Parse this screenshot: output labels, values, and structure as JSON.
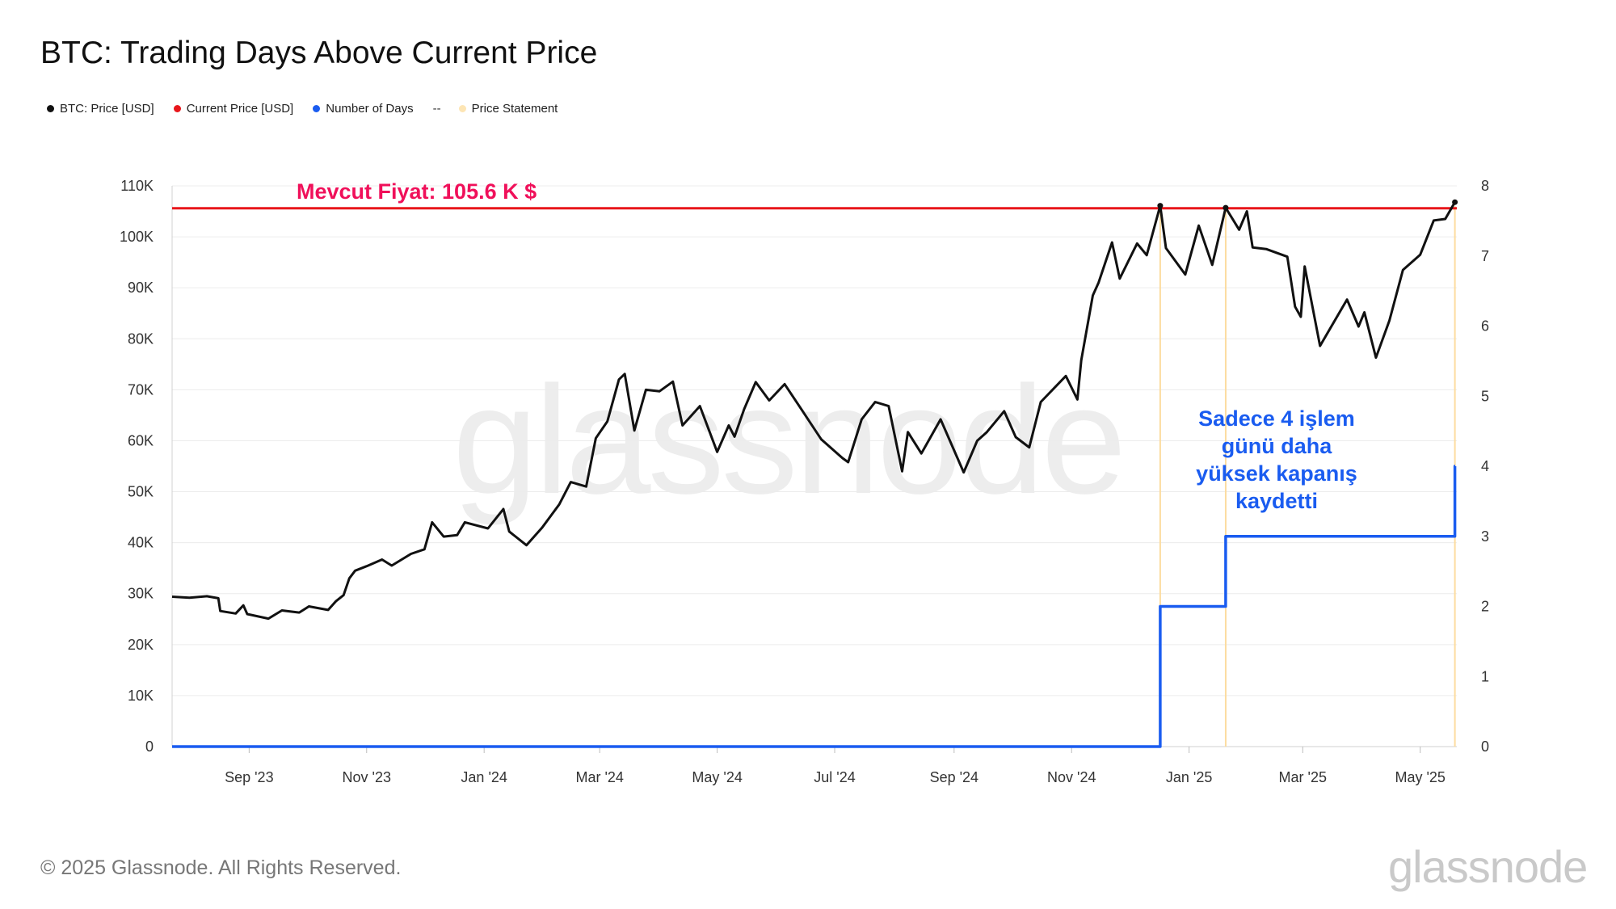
{
  "header": {
    "title": "BTC: Trading Days Above Current Price"
  },
  "legend": {
    "items": [
      {
        "label": "BTC: Price [USD]",
        "color": "#111111"
      },
      {
        "label": "Current Price [USD]",
        "color": "#e8161b"
      },
      {
        "label": "Number of Days",
        "color": "#1a5cf0"
      }
    ],
    "dash": "--",
    "statement": {
      "label": "Price Statement",
      "color": "#fde5b4"
    }
  },
  "footer": {
    "copyright": "© 2025 Glassnode. All Rights Reserved.",
    "brand": "glassnode"
  },
  "chart_data": {
    "type": "line",
    "watermark": "glassnode",
    "y_left": {
      "ticks": [
        "0",
        "10K",
        "20K",
        "30K",
        "40K",
        "50K",
        "60K",
        "70K",
        "80K",
        "90K",
        "100K",
        "110K"
      ],
      "ylim": [
        0,
        110000
      ]
    },
    "y_right": {
      "ticks": [
        "0",
        "1",
        "2",
        "3",
        "4",
        "5",
        "6",
        "7",
        "8"
      ],
      "ylim": [
        0,
        8
      ]
    },
    "x_ticks": [
      {
        "label": "Sep '23",
        "date": "2023-09-01"
      },
      {
        "label": "Nov '23",
        "date": "2023-11-01"
      },
      {
        "label": "Jan '24",
        "date": "2024-01-01"
      },
      {
        "label": "Mar '24",
        "date": "2024-03-01"
      },
      {
        "label": "May '24",
        "date": "2024-05-01"
      },
      {
        "label": "Jul '24",
        "date": "2024-07-01"
      },
      {
        "label": "Sep '24",
        "date": "2024-09-01"
      },
      {
        "label": "Nov '24",
        "date": "2024-11-01"
      },
      {
        "label": "Jan '25",
        "date": "2025-01-01"
      },
      {
        "label": "Mar '25",
        "date": "2025-03-01"
      },
      {
        "label": "May '25",
        "date": "2025-05-01"
      }
    ],
    "xlim": [
      "2023-07-23",
      "2025-05-20"
    ],
    "grid": true,
    "current_price": {
      "value": 105600,
      "label": "Mevcut Fiyat: 105.6 K $"
    },
    "days_annotation": [
      "Sadece 4 işlem",
      "günü daha",
      "yüksek kapanış",
      "kaydetti"
    ],
    "price_statements": [
      "2024-12-17",
      "2025-01-20",
      "2025-05-19"
    ],
    "series": [
      {
        "name": "BTC: Price [USD]",
        "axis": "left",
        "color": "#111111",
        "points": [
          [
            "2023-07-23",
            29400
          ],
          [
            "2023-08-01",
            29200
          ],
          [
            "2023-08-10",
            29500
          ],
          [
            "2023-08-16",
            29100
          ],
          [
            "2023-08-17",
            26600
          ],
          [
            "2023-08-25",
            26100
          ],
          [
            "2023-08-29",
            27700
          ],
          [
            "2023-08-31",
            26000
          ],
          [
            "2023-09-11",
            25100
          ],
          [
            "2023-09-18",
            26700
          ],
          [
            "2023-09-27",
            26300
          ],
          [
            "2023-10-02",
            27500
          ],
          [
            "2023-10-12",
            26800
          ],
          [
            "2023-10-16",
            28500
          ],
          [
            "2023-10-20",
            29700
          ],
          [
            "2023-10-23",
            33000
          ],
          [
            "2023-10-26",
            34500
          ],
          [
            "2023-11-01",
            35400
          ],
          [
            "2023-11-09",
            36700
          ],
          [
            "2023-11-14",
            35500
          ],
          [
            "2023-11-24",
            37800
          ],
          [
            "2023-12-01",
            38700
          ],
          [
            "2023-12-05",
            44000
          ],
          [
            "2023-12-11",
            41200
          ],
          [
            "2023-12-18",
            41500
          ],
          [
            "2023-12-22",
            44000
          ],
          [
            "2024-01-03",
            42800
          ],
          [
            "2024-01-11",
            46600
          ],
          [
            "2024-01-14",
            42200
          ],
          [
            "2024-01-23",
            39500
          ],
          [
            "2024-01-31",
            42900
          ],
          [
            "2024-02-09",
            47500
          ],
          [
            "2024-02-15",
            51900
          ],
          [
            "2024-02-23",
            51000
          ],
          [
            "2024-02-28",
            60500
          ],
          [
            "2024-03-05",
            63800
          ],
          [
            "2024-03-11",
            72000
          ],
          [
            "2024-03-14",
            73100
          ],
          [
            "2024-03-19",
            62000
          ],
          [
            "2024-03-25",
            70000
          ],
          [
            "2024-04-01",
            69700
          ],
          [
            "2024-04-08",
            71600
          ],
          [
            "2024-04-13",
            63000
          ],
          [
            "2024-04-22",
            66800
          ],
          [
            "2024-05-01",
            57800
          ],
          [
            "2024-05-07",
            63000
          ],
          [
            "2024-05-10",
            60800
          ],
          [
            "2024-05-15",
            66200
          ],
          [
            "2024-05-21",
            71500
          ],
          [
            "2024-05-28",
            67900
          ],
          [
            "2024-06-05",
            71100
          ],
          [
            "2024-06-14",
            66000
          ],
          [
            "2024-06-24",
            60300
          ],
          [
            "2024-07-05",
            56600
          ],
          [
            "2024-07-08",
            55800
          ],
          [
            "2024-07-15",
            64200
          ],
          [
            "2024-07-22",
            67600
          ],
          [
            "2024-07-29",
            66800
          ],
          [
            "2024-08-05",
            54000
          ],
          [
            "2024-08-08",
            61700
          ],
          [
            "2024-08-15",
            57500
          ],
          [
            "2024-08-25",
            64200
          ],
          [
            "2024-09-06",
            53800
          ],
          [
            "2024-09-13",
            60000
          ],
          [
            "2024-09-18",
            61700
          ],
          [
            "2024-09-27",
            65800
          ],
          [
            "2024-10-03",
            60700
          ],
          [
            "2024-10-10",
            58700
          ],
          [
            "2024-10-16",
            67600
          ],
          [
            "2024-10-29",
            72700
          ],
          [
            "2024-11-04",
            68100
          ],
          [
            "2024-11-06",
            75800
          ],
          [
            "2024-11-12",
            88500
          ],
          [
            "2024-11-15",
            91000
          ],
          [
            "2024-11-22",
            98900
          ],
          [
            "2024-11-26",
            91800
          ],
          [
            "2024-12-05",
            98700
          ],
          [
            "2024-12-10",
            96400
          ],
          [
            "2024-12-17",
            106100
          ],
          [
            "2024-12-20",
            97800
          ],
          [
            "2024-12-30",
            92600
          ],
          [
            "2025-01-06",
            102200
          ],
          [
            "2025-01-13",
            94500
          ],
          [
            "2025-01-20",
            105700
          ],
          [
            "2025-01-27",
            101400
          ],
          [
            "2025-01-31",
            105000
          ],
          [
            "2025-02-03",
            97900
          ],
          [
            "2025-02-10",
            97600
          ],
          [
            "2025-02-21",
            96100
          ],
          [
            "2025-02-25",
            86300
          ],
          [
            "2025-02-28",
            84300
          ],
          [
            "2025-03-02",
            94200
          ],
          [
            "2025-03-10",
            78600
          ],
          [
            "2025-03-24",
            87700
          ],
          [
            "2025-03-30",
            82400
          ],
          [
            "2025-04-02",
            85200
          ],
          [
            "2025-04-08",
            76300
          ],
          [
            "2025-04-15",
            83600
          ],
          [
            "2025-04-22",
            93500
          ],
          [
            "2025-05-01",
            96500
          ],
          [
            "2025-05-08",
            103200
          ],
          [
            "2025-05-14",
            103500
          ],
          [
            "2025-05-19",
            106800
          ]
        ]
      },
      {
        "name": "Number of Days",
        "axis": "right",
        "color": "#1a5cf0",
        "step": true,
        "points": [
          [
            "2023-07-23",
            0
          ],
          [
            "2024-12-17",
            2
          ],
          [
            "2025-01-20",
            3
          ],
          [
            "2025-05-19",
            4
          ]
        ]
      }
    ]
  }
}
